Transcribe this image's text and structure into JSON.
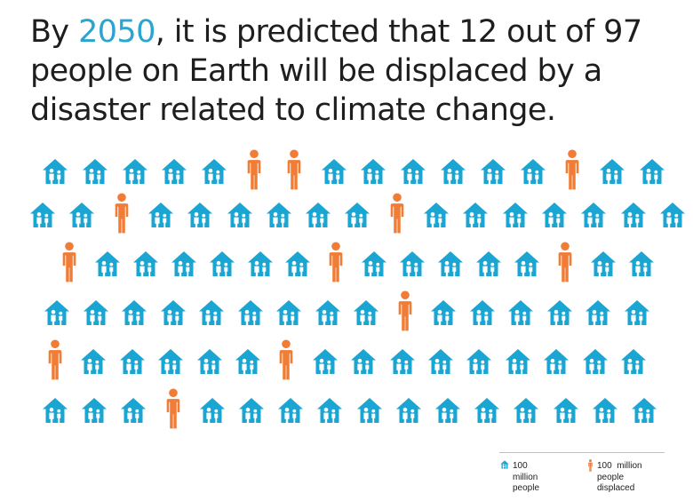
{
  "headline": {
    "before": "By ",
    "highlight": "2050",
    "after": ", it is predicted that 12 out of 97 people on Earth will be displaced by a disaster related to climate change."
  },
  "colors": {
    "home": "#1aa5d3",
    "displaced": "#f07c35",
    "text": "#1e1e1e",
    "highlight": "#2aa4d0"
  },
  "chart_data": {
    "type": "pictogram",
    "unit": "100 million people",
    "total_icons": 97,
    "counts": {
      "people": 85,
      "people_displaced": 12
    },
    "rows": [
      [
        "H",
        "H",
        "H",
        "H",
        "H",
        "D",
        "D",
        "H",
        "H",
        "H",
        "H",
        "H",
        "H",
        "D",
        "H",
        "H"
      ],
      [
        "H",
        "H",
        "D",
        "H",
        "H",
        "H",
        "H",
        "H",
        "H",
        "D",
        "H",
        "H",
        "H",
        "H",
        "H",
        "H",
        "H"
      ],
      [
        "D",
        "H",
        "H",
        "H",
        "H",
        "H",
        "H",
        "D",
        "H",
        "H",
        "H",
        "H",
        "H",
        "D",
        "H",
        "H"
      ],
      [
        "H",
        "H",
        "H",
        "H",
        "H",
        "H",
        "H",
        "H",
        "H",
        "D",
        "H",
        "H",
        "H",
        "H",
        "H",
        "H"
      ],
      [
        "D",
        "H",
        "H",
        "H",
        "H",
        "H",
        "D",
        "H",
        "H",
        "H",
        "H",
        "H",
        "H",
        "H",
        "H",
        "H"
      ],
      [
        "H",
        "H",
        "H",
        "D",
        "H",
        "H",
        "H",
        "H",
        "H",
        "H",
        "H",
        "H",
        "H",
        "H",
        "H",
        "H"
      ]
    ],
    "legend": [
      {
        "icon": "house-family-icon",
        "label": "100 million people"
      },
      {
        "icon": "person-icon",
        "label": "100 million people displaced"
      }
    ]
  },
  "legend": {
    "home_lines": [
      "100",
      "million",
      "people"
    ],
    "displaced_lines": [
      "100  million",
      "people",
      "displaced"
    ]
  }
}
